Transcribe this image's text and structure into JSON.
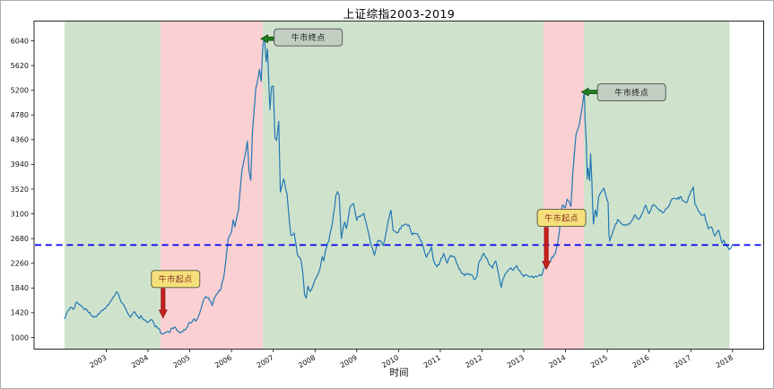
{
  "figure": {
    "background": "#ffffff",
    "border_color": "#adadad"
  },
  "chart_data": {
    "type": "line",
    "title": "上证综指2003-2019",
    "xlabel": "时间",
    "ylabel": "",
    "grid": false,
    "legend": null,
    "x_tick_labels": [
      "2003",
      "2004",
      "2005",
      "2006",
      "2007",
      "2008",
      "2009",
      "2010",
      "2011",
      "2012",
      "2013",
      "2014",
      "2015",
      "2016",
      "2017",
      "2018"
    ],
    "y_ticks": [
      1000,
      1420,
      1840,
      2260,
      2680,
      3100,
      3520,
      3940,
      4360,
      4780,
      5200,
      5620,
      6040
    ],
    "ylim": [
      794,
      6375
    ],
    "xlim_years": [
      2002.19,
      2019.76
    ],
    "colors": {
      "line": "#2277b4",
      "reference": "#0000ee",
      "band_green": "#cfe3cc",
      "band_pink": "#fad0d2",
      "spine": "#262626",
      "tick_label": "#111111"
    },
    "reference_line": {
      "orientation": "horizontal",
      "value": 2570,
      "color": "#0000ee",
      "style": "dashed"
    },
    "bands": [
      {
        "from_year": 2003.0,
        "to_year": 2005.3,
        "color": "#cfe3cc"
      },
      {
        "from_year": 2005.3,
        "to_year": 2007.75,
        "color": "#fad0d2"
      },
      {
        "from_year": 2007.75,
        "to_year": 2014.47,
        "color": "#cfe3cc"
      },
      {
        "from_year": 2014.47,
        "to_year": 2015.44,
        "color": "#fad0d2"
      },
      {
        "from_year": 2015.44,
        "to_year": 2018.93,
        "color": "#cfe3cc"
      }
    ],
    "annotations": [
      {
        "id": "bull1-start",
        "label": "牛市起点",
        "year": 2005.36,
        "value": 1330,
        "arrow": "down",
        "arrow_color": "#c41f1f",
        "arrow_border": "#801010",
        "box_bg": "#f6e07b",
        "box_border": "#55553a",
        "text_color": "#8b3226"
      },
      {
        "id": "bull1-end",
        "label": "牛市终点",
        "year": 2007.7,
        "value": 6075,
        "arrow": "left",
        "arrow_color": "#1e7d1e",
        "arrow_border": "#0c3b0c",
        "box_bg": "#c2cec2",
        "box_border": "#4d4d4d",
        "text_color": "#1a1a1a"
      },
      {
        "id": "bull2-start",
        "label": "牛市起点",
        "year": 2014.54,
        "value": 2155,
        "arrow": "down",
        "arrow_color": "#c41f1f",
        "arrow_border": "#801010",
        "box_bg": "#f6e07b",
        "box_border": "#55553a",
        "text_color": "#8b3226"
      },
      {
        "id": "bull2-end",
        "label": "牛市终点",
        "year": 2015.38,
        "value": 5170,
        "arrow": "left",
        "arrow_color": "#1e7d1e",
        "arrow_border": "#0c3b0c",
        "box_bg": "#c2cec2",
        "box_border": "#4d4d4d",
        "text_color": "#1a1a1a"
      }
    ],
    "series": [
      {
        "name": "上证综指",
        "color": "#2277b4",
        "points": [
          [
            2003.0,
            1320
          ],
          [
            2003.08,
            1446
          ],
          [
            2003.17,
            1510
          ],
          [
            2003.21,
            1478
          ],
          [
            2003.29,
            1603
          ],
          [
            2003.33,
            1576
          ],
          [
            2003.42,
            1520
          ],
          [
            2003.5,
            1486
          ],
          [
            2003.58,
            1421
          ],
          [
            2003.67,
            1367
          ],
          [
            2003.75,
            1348
          ],
          [
            2003.83,
            1397
          ],
          [
            2003.92,
            1457
          ],
          [
            2004.0,
            1517
          ],
          [
            2004.08,
            1590
          ],
          [
            2004.17,
            1690
          ],
          [
            2004.25,
            1778
          ],
          [
            2004.29,
            1740
          ],
          [
            2004.33,
            1650
          ],
          [
            2004.42,
            1555
          ],
          [
            2004.5,
            1430
          ],
          [
            2004.54,
            1380
          ],
          [
            2004.58,
            1342
          ],
          [
            2004.63,
            1405
          ],
          [
            2004.67,
            1440
          ],
          [
            2004.75,
            1370
          ],
          [
            2004.79,
            1320
          ],
          [
            2004.83,
            1372
          ],
          [
            2004.92,
            1300
          ],
          [
            2005.0,
            1254
          ],
          [
            2005.04,
            1285
          ],
          [
            2005.08,
            1306
          ],
          [
            2005.17,
            1181
          ],
          [
            2005.25,
            1159
          ],
          [
            2005.33,
            1060
          ],
          [
            2005.42,
            1080
          ],
          [
            2005.5,
            1083
          ],
          [
            2005.58,
            1162
          ],
          [
            2005.67,
            1155
          ],
          [
            2005.75,
            1092
          ],
          [
            2005.83,
            1099
          ],
          [
            2005.92,
            1161
          ],
          [
            2006.0,
            1258
          ],
          [
            2006.08,
            1299
          ],
          [
            2006.17,
            1298
          ],
          [
            2006.25,
            1440
          ],
          [
            2006.33,
            1641
          ],
          [
            2006.38,
            1695
          ],
          [
            2006.42,
            1672
          ],
          [
            2006.5,
            1612
          ],
          [
            2006.54,
            1541
          ],
          [
            2006.58,
            1658
          ],
          [
            2006.67,
            1752
          ],
          [
            2006.75,
            1837
          ],
          [
            2006.83,
            2099
          ],
          [
            2006.92,
            2675
          ],
          [
            2007.0,
            2786
          ],
          [
            2007.04,
            2998
          ],
          [
            2007.08,
            2881
          ],
          [
            2007.13,
            3050
          ],
          [
            2007.17,
            3183
          ],
          [
            2007.25,
            3841
          ],
          [
            2007.33,
            4109
          ],
          [
            2007.38,
            4335
          ],
          [
            2007.42,
            3821
          ],
          [
            2007.46,
            3670
          ],
          [
            2007.5,
            4471
          ],
          [
            2007.58,
            5218
          ],
          [
            2007.67,
            5552
          ],
          [
            2007.71,
            5350
          ],
          [
            2007.75,
            5955
          ],
          [
            2007.79,
            6092
          ],
          [
            2007.83,
            5680
          ],
          [
            2007.86,
            5900
          ],
          [
            2007.92,
            4871
          ],
          [
            2007.96,
            5262
          ],
          [
            2008.0,
            5272
          ],
          [
            2008.04,
            4383
          ],
          [
            2008.08,
            4348
          ],
          [
            2008.13,
            4672
          ],
          [
            2008.17,
            3472
          ],
          [
            2008.21,
            3580
          ],
          [
            2008.25,
            3693
          ],
          [
            2008.33,
            3433
          ],
          [
            2008.42,
            2736
          ],
          [
            2008.5,
            2776
          ],
          [
            2008.58,
            2397
          ],
          [
            2008.67,
            2294
          ],
          [
            2008.71,
            2075
          ],
          [
            2008.75,
            1729
          ],
          [
            2008.79,
            1665
          ],
          [
            2008.83,
            1871
          ],
          [
            2008.88,
            1780
          ],
          [
            2008.92,
            1821
          ],
          [
            2009.0,
            1991
          ],
          [
            2009.08,
            2083
          ],
          [
            2009.13,
            2201
          ],
          [
            2009.17,
            2373
          ],
          [
            2009.21,
            2300
          ],
          [
            2009.25,
            2478
          ],
          [
            2009.33,
            2633
          ],
          [
            2009.42,
            2959
          ],
          [
            2009.5,
            3412
          ],
          [
            2009.54,
            3478
          ],
          [
            2009.58,
            3412
          ],
          [
            2009.63,
            2680
          ],
          [
            2009.71,
            2960
          ],
          [
            2009.75,
            2850
          ],
          [
            2009.83,
            3195
          ],
          [
            2009.92,
            3277
          ],
          [
            2010.0,
            2989
          ],
          [
            2010.04,
            3060
          ],
          [
            2010.08,
            3052
          ],
          [
            2010.17,
            3109
          ],
          [
            2010.25,
            2871
          ],
          [
            2010.33,
            2592
          ],
          [
            2010.42,
            2398
          ],
          [
            2010.5,
            2638
          ],
          [
            2010.58,
            2639
          ],
          [
            2010.63,
            2560
          ],
          [
            2010.67,
            2656
          ],
          [
            2010.75,
            2979
          ],
          [
            2010.82,
            3160
          ],
          [
            2010.87,
            2820
          ],
          [
            2010.92,
            2808
          ],
          [
            2011.0,
            2790
          ],
          [
            2011.08,
            2905
          ],
          [
            2011.17,
            2928
          ],
          [
            2011.25,
            2911
          ],
          [
            2011.33,
            2743
          ],
          [
            2011.42,
            2762
          ],
          [
            2011.5,
            2701
          ],
          [
            2011.58,
            2567
          ],
          [
            2011.63,
            2437
          ],
          [
            2011.67,
            2359
          ],
          [
            2011.75,
            2470
          ],
          [
            2011.79,
            2536
          ],
          [
            2011.83,
            2333
          ],
          [
            2011.92,
            2199
          ],
          [
            2012.0,
            2293
          ],
          [
            2012.08,
            2428
          ],
          [
            2012.17,
            2262
          ],
          [
            2012.25,
            2396
          ],
          [
            2012.33,
            2372
          ],
          [
            2012.42,
            2225
          ],
          [
            2012.5,
            2103
          ],
          [
            2012.58,
            2047
          ],
          [
            2012.67,
            2086
          ],
          [
            2012.75,
            2068
          ],
          [
            2012.83,
            1980
          ],
          [
            2012.88,
            2042
          ],
          [
            2012.92,
            2269
          ],
          [
            2013.0,
            2385
          ],
          [
            2013.04,
            2432
          ],
          [
            2013.08,
            2365
          ],
          [
            2013.17,
            2236
          ],
          [
            2013.25,
            2177
          ],
          [
            2013.33,
            2301
          ],
          [
            2013.42,
            1979
          ],
          [
            2013.46,
            1850
          ],
          [
            2013.5,
            1994
          ],
          [
            2013.58,
            2098
          ],
          [
            2013.67,
            2175
          ],
          [
            2013.75,
            2141
          ],
          [
            2013.83,
            2220
          ],
          [
            2013.92,
            2116
          ],
          [
            2014.0,
            2033
          ],
          [
            2014.08,
            2056
          ],
          [
            2014.17,
            2033
          ],
          [
            2014.25,
            2026
          ],
          [
            2014.33,
            2039
          ],
          [
            2014.42,
            2048
          ],
          [
            2014.5,
            2201
          ],
          [
            2014.58,
            2217
          ],
          [
            2014.67,
            2364
          ],
          [
            2014.75,
            2420
          ],
          [
            2014.83,
            2683
          ],
          [
            2014.92,
            3235
          ],
          [
            2015.0,
            3210
          ],
          [
            2015.04,
            3350
          ],
          [
            2015.08,
            3310
          ],
          [
            2015.13,
            3224
          ],
          [
            2015.17,
            3748
          ],
          [
            2015.25,
            4441
          ],
          [
            2015.29,
            4527
          ],
          [
            2015.33,
            4612
          ],
          [
            2015.42,
            5023
          ],
          [
            2015.45,
            5178
          ],
          [
            2015.47,
            4690
          ],
          [
            2015.5,
            4277
          ],
          [
            2015.52,
            3687
          ],
          [
            2015.54,
            3877
          ],
          [
            2015.58,
            3664
          ],
          [
            2015.6,
            4123
          ],
          [
            2015.63,
            3664
          ],
          [
            2015.65,
            3210
          ],
          [
            2015.67,
            2927
          ],
          [
            2015.71,
            3166
          ],
          [
            2015.75,
            3053
          ],
          [
            2015.79,
            3383
          ],
          [
            2015.83,
            3445
          ],
          [
            2015.92,
            3539
          ],
          [
            2016.02,
            3296
          ],
          [
            2016.04,
            2750
          ],
          [
            2016.06,
            2638
          ],
          [
            2016.08,
            2688
          ],
          [
            2016.17,
            2860
          ],
          [
            2016.25,
            3004
          ],
          [
            2016.33,
            2938
          ],
          [
            2016.42,
            2917
          ],
          [
            2016.5,
            2930
          ],
          [
            2016.58,
            2979
          ],
          [
            2016.67,
            3085
          ],
          [
            2016.75,
            3005
          ],
          [
            2016.83,
            3100
          ],
          [
            2016.92,
            3250
          ],
          [
            2017.0,
            3104
          ],
          [
            2017.04,
            3159
          ],
          [
            2017.08,
            3242
          ],
          [
            2017.17,
            3223
          ],
          [
            2017.25,
            3155
          ],
          [
            2017.33,
            3117
          ],
          [
            2017.42,
            3192
          ],
          [
            2017.5,
            3273
          ],
          [
            2017.58,
            3361
          ],
          [
            2017.67,
            3349
          ],
          [
            2017.75,
            3393
          ],
          [
            2017.83,
            3317
          ],
          [
            2017.92,
            3307
          ],
          [
            2018.0,
            3481
          ],
          [
            2018.06,
            3559
          ],
          [
            2018.1,
            3259
          ],
          [
            2018.17,
            3169
          ],
          [
            2018.25,
            3082
          ],
          [
            2018.33,
            3095
          ],
          [
            2018.42,
            2847
          ],
          [
            2018.5,
            2876
          ],
          [
            2018.58,
            2725
          ],
          [
            2018.63,
            2794
          ],
          [
            2018.67,
            2821
          ],
          [
            2018.71,
            2702
          ],
          [
            2018.75,
            2603
          ],
          [
            2018.79,
            2654
          ],
          [
            2018.83,
            2588
          ],
          [
            2018.88,
            2536
          ],
          [
            2018.92,
            2494
          ],
          [
            2018.96,
            2516
          ],
          [
            2019.0,
            2584
          ],
          [
            2019.04,
            2560
          ]
        ]
      }
    ]
  }
}
